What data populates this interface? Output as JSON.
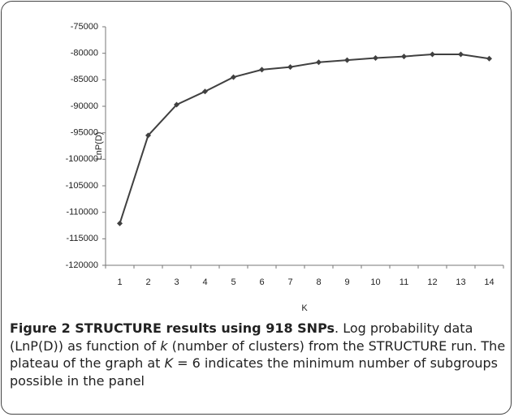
{
  "chart_data": {
    "type": "line",
    "x_label": "K",
    "y_label": "LnP(D)",
    "categories": [
      "1",
      "2",
      "3",
      "4",
      "5",
      "6",
      "7",
      "8",
      "9",
      "10",
      "11",
      "12",
      "13",
      "14"
    ],
    "series": [
      {
        "name": "LnP(D)",
        "color": "#404040",
        "values": [
          -112100,
          -95500,
          -89700,
          -87200,
          -84500,
          -83100,
          -82600,
          -81700,
          -81300,
          -80900,
          -80600,
          -80200,
          -80200,
          -81000
        ]
      }
    ],
    "ylim": [
      -120000,
      -75000
    ],
    "yticks": [
      -120000,
      -115000,
      -110000,
      -105000,
      -100000,
      -95000,
      -90000,
      -85000,
      -80000,
      -75000
    ],
    "grid": false
  },
  "caption": {
    "title": "Figure 2 STRUCTURE results using 918 SNPs",
    "parts": [
      ". Log probability data (LnP(D)) as function of ",
      "k",
      " (number of clusters) from the STRUCTURE run. The plateau of the graph at ",
      "K",
      " = 6 indicates the minimum number of subgroups possible in the panel"
    ]
  }
}
